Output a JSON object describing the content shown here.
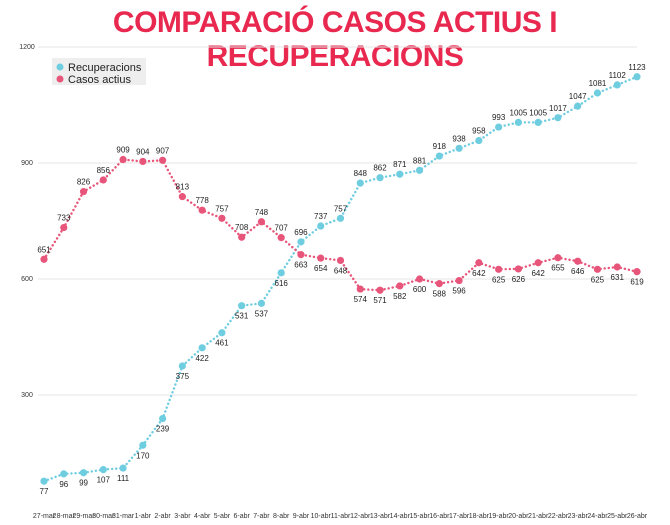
{
  "chart_data": {
    "type": "line",
    "title": "COMPARACIÓ CASOS ACTIUS I RECUPERACIONS",
    "xlabel": "",
    "ylabel": "",
    "ylim": [
      0,
      1200
    ],
    "yticks": [
      300,
      600,
      900,
      1200
    ],
    "grid": true,
    "legend_position": "top-left",
    "categories": [
      "27-mar",
      "28-mar",
      "29-mar",
      "30-mar",
      "31-mar",
      "1-abr",
      "2-abr",
      "3-abr",
      "4-abr",
      "5-abr",
      "6-abr",
      "7-abr",
      "8-abr",
      "9-abr",
      "10-abr",
      "11-abr",
      "12-abr",
      "13-abr",
      "14-abr",
      "15-abr",
      "16-abr",
      "17-abr",
      "18-abr",
      "19-abr",
      "20-abr",
      "21-abr",
      "22-abr",
      "23-abr",
      "24-abr",
      "25-abr",
      "26-abr"
    ],
    "series": [
      {
        "name": "Recuperacions",
        "color": "#6fcde0",
        "values": [
          77,
          96,
          99,
          107,
          111,
          170,
          239,
          375,
          422,
          461,
          531,
          537,
          616,
          696,
          737,
          757,
          848,
          862,
          871,
          881,
          918,
          938,
          958,
          993,
          1005,
          1005,
          1017,
          1047,
          1081,
          1102,
          1123
        ]
      },
      {
        "name": "Casos actius",
        "color": "#e8557a",
        "values": [
          651,
          733,
          826,
          856,
          909,
          904,
          907,
          813,
          778,
          757,
          708,
          748,
          707,
          663,
          654,
          648,
          574,
          571,
          582,
          600,
          588,
          596,
          642,
          625,
          626,
          642,
          655,
          646,
          625,
          631,
          619
        ]
      }
    ]
  }
}
